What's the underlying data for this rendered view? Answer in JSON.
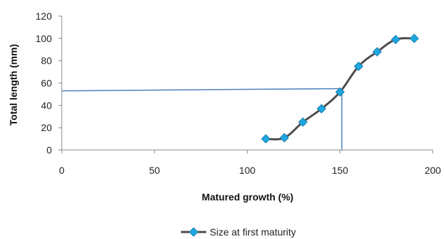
{
  "chart_data": {
    "type": "scatter",
    "title": "",
    "xlabel": "Matured growth (%)",
    "ylabel": "Total length (mm)",
    "xlim": [
      0,
      200
    ],
    "ylim": [
      0,
      120
    ],
    "x_ticks": [
      "0",
      "50",
      "100",
      "150",
      "200"
    ],
    "y_ticks": [
      "0",
      "20",
      "40",
      "60",
      "80",
      "100",
      "120"
    ],
    "grid": false,
    "legend_position": "bottom",
    "series": [
      {
        "name": "Size at first maturity",
        "color": "#4d4d4d",
        "marker_color": "#1ea7e0",
        "marker": "diamond",
        "line": "smooth",
        "x": [
          110,
          120,
          130,
          140,
          150,
          160,
          170,
          180,
          190
        ],
        "y": [
          10,
          11,
          25,
          37,
          52,
          75,
          88,
          99,
          100
        ]
      }
    ],
    "reference_lines": {
      "color": "#4a7ebb",
      "horizontal_from": [
        0,
        53
      ],
      "horizontal_to": [
        150,
        55
      ],
      "vertical_from": [
        151,
        55
      ],
      "vertical_to": [
        151,
        0
      ]
    }
  }
}
